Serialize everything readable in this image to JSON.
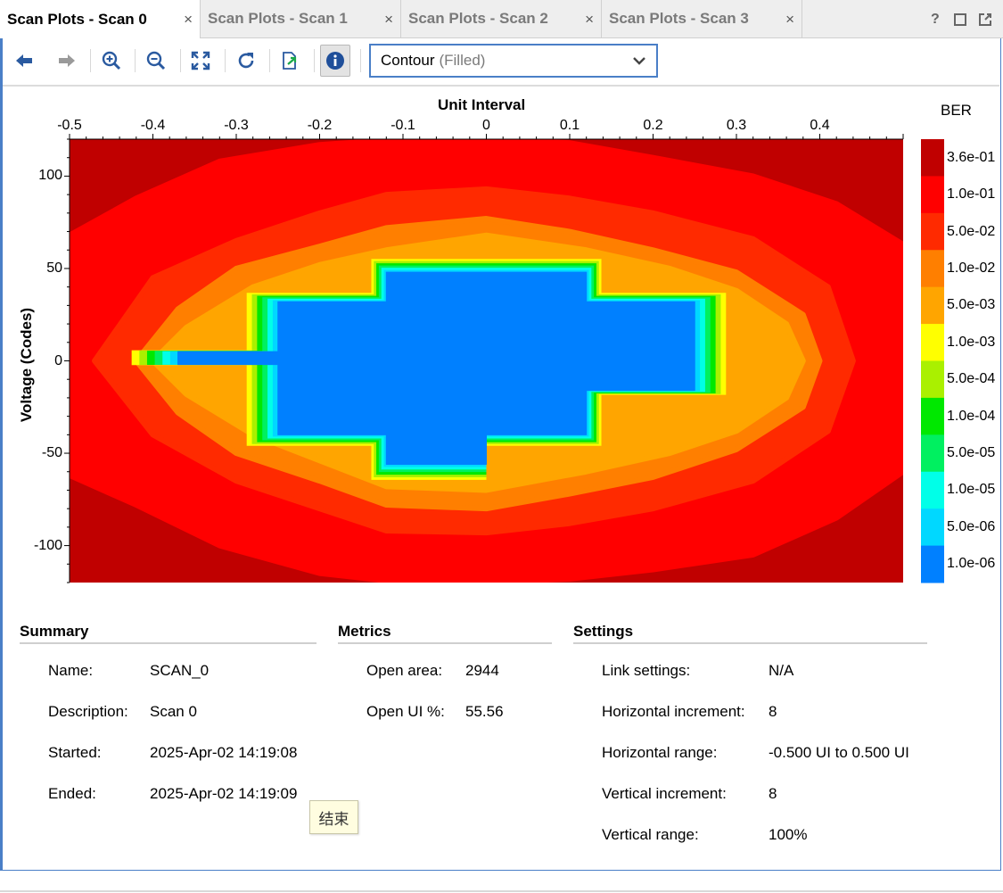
{
  "tabs": [
    {
      "label": "Scan Plots - Scan 0",
      "active": true
    },
    {
      "label": "Scan Plots - Scan 1",
      "active": false
    },
    {
      "label": "Scan Plots - Scan 2",
      "active": false
    },
    {
      "label": "Scan Plots - Scan 3",
      "active": false
    }
  ],
  "tab_close_glyph": "×",
  "window_controls": {
    "help": "?"
  },
  "toolbar": {
    "icons": [
      "back-arrow-icon",
      "forward-arrow-icon",
      "zoom-in-icon",
      "zoom-out-icon",
      "fit-view-icon",
      "refresh-icon",
      "export-icon",
      "info-icon"
    ],
    "plot_type_value": "Contour",
    "plot_type_sub": "(Filled)"
  },
  "plot": {
    "x_title": "Unit Interval",
    "y_title": "Voltage (Codes)",
    "x_ticks": [
      "-0.5",
      "-0.4",
      "-0.3",
      "-0.2",
      "-0.1",
      "0",
      "0.1",
      "0.2",
      "0.3",
      "0.4"
    ],
    "y_ticks": [
      "100",
      "50",
      "0",
      "-50",
      "-100"
    ],
    "colorbar_title": "BER",
    "colorbar_labels": [
      "3.6e-01",
      "1.0e-01",
      "5.0e-02",
      "1.0e-02",
      "5.0e-03",
      "1.0e-03",
      "5.0e-04",
      "1.0e-04",
      "5.0e-05",
      "1.0e-05",
      "5.0e-06",
      "1.0e-06"
    ],
    "colorbar_colors": [
      "#c00000",
      "#ff0000",
      "#ff2a00",
      "#ff7f00",
      "#ffa500",
      "#ffff00",
      "#aaf000",
      "#00e800",
      "#00f060",
      "#00ffe8",
      "#00d8ff",
      "#0080ff"
    ]
  },
  "chart_data": {
    "type": "heatmap",
    "title": "",
    "xlabel": "Unit Interval",
    "ylabel": "Voltage (Codes)",
    "xlim": [
      -0.5,
      0.5
    ],
    "ylim": [
      -120,
      120
    ],
    "colorbar_title": "BER",
    "levels": [
      "3.6e-01",
      "1.0e-01",
      "5.0e-02",
      "1.0e-02",
      "5.0e-03",
      "1.0e-03",
      "5.0e-04",
      "1.0e-04",
      "5.0e-05",
      "1.0e-05",
      "5.0e-06",
      "1.0e-06"
    ],
    "contours": [
      {
        "level": "1.0e-01",
        "x": [
          -0.5,
          -0.42,
          -0.32,
          -0.2,
          -0.1,
          0,
          0.1,
          0.2,
          0.32,
          0.42,
          0.5,
          0.5,
          0.42,
          0.32,
          0.2,
          0.1,
          0,
          -0.1,
          -0.2,
          -0.32,
          -0.42,
          -0.5
        ],
        "y": [
          68,
          88,
          108,
          117,
          120,
          120,
          118,
          110,
          100,
          85,
          63,
          -60,
          -85,
          -105,
          -113,
          -118,
          -120,
          -120,
          -115,
          -100,
          -78,
          -62
        ]
      },
      {
        "level": "5.0e-02",
        "x": [
          -0.47,
          -0.4,
          -0.3,
          -0.2,
          -0.12,
          0,
          0.1,
          0.2,
          0.32,
          0.41,
          0.44,
          0.41,
          0.32,
          0.2,
          0.1,
          0,
          -0.12,
          -0.2,
          -0.3,
          -0.4,
          -0.47
        ],
        "y": [
          0,
          45,
          65,
          80,
          90,
          93,
          88,
          80,
          66,
          40,
          0,
          -38,
          -65,
          -80,
          -88,
          -93,
          -92,
          -80,
          -65,
          -40,
          0
        ]
      },
      {
        "level": "1.0e-02",
        "x": [
          -0.42,
          -0.37,
          -0.3,
          -0.2,
          -0.12,
          0,
          0.1,
          0.2,
          0.3,
          0.38,
          0.4,
          0.38,
          0.3,
          0.2,
          0.1,
          0,
          -0.12,
          -0.2,
          -0.3,
          -0.37,
          -0.42
        ],
        "y": [
          0,
          28,
          50,
          62,
          72,
          77,
          70,
          60,
          48,
          25,
          0,
          -25,
          -48,
          -63,
          -72,
          -80,
          -78,
          -65,
          -50,
          -28,
          0
        ]
      },
      {
        "level": "5.0e-03",
        "x": [
          -0.4,
          -0.36,
          -0.28,
          -0.2,
          -0.12,
          0,
          0.12,
          0.22,
          0.3,
          0.36,
          0.38,
          0.36,
          0.3,
          0.22,
          0.12,
          0,
          -0.12,
          -0.2,
          -0.28,
          -0.36,
          -0.4
        ],
        "y": [
          0,
          18,
          40,
          52,
          60,
          68,
          60,
          50,
          38,
          20,
          0,
          -20,
          -38,
          -50,
          -60,
          -70,
          -68,
          -54,
          -40,
          -18,
          0
        ]
      },
      {
        "level": "1.0e-06",
        "x": [
          -0.37,
          -0.25,
          -0.25,
          -0.12,
          -0.12,
          0,
          0,
          0.12,
          0.12,
          0.25,
          0.25,
          0.12,
          0.12,
          0,
          0,
          -0.12,
          -0.12,
          -0.25,
          -0.25,
          -0.37
        ],
        "y": [
          5,
          5,
          32,
          32,
          48,
          48,
          48,
          48,
          32,
          32,
          -16,
          -16,
          -40,
          -40,
          -56,
          -56,
          -40,
          -40,
          -2,
          -2
        ]
      }
    ]
  },
  "summary": {
    "title": "Summary",
    "rows": [
      {
        "key": "Name:",
        "value": "SCAN_0"
      },
      {
        "key": "Description:",
        "value": "Scan 0"
      },
      {
        "key": "Started:",
        "value": "2025-Apr-02 14:19:08"
      },
      {
        "key": "Ended:",
        "value": "2025-Apr-02 14:19:09"
      }
    ]
  },
  "metrics": {
    "title": "Metrics",
    "rows": [
      {
        "key": "Open area:",
        "value": "2944"
      },
      {
        "key": "Open UI %:",
        "value": "55.56"
      }
    ]
  },
  "settings": {
    "title": "Settings",
    "rows": [
      {
        "key": "Link settings:",
        "value": "N/A"
      },
      {
        "key": "Horizontal increment:",
        "value": "8"
      },
      {
        "key": "Horizontal range:",
        "value": "-0.500 UI to 0.500 UI"
      },
      {
        "key": "Vertical increment:",
        "value": "8"
      },
      {
        "key": "Vertical range:",
        "value": "100%"
      }
    ]
  },
  "tooltip": {
    "text": "结束"
  }
}
